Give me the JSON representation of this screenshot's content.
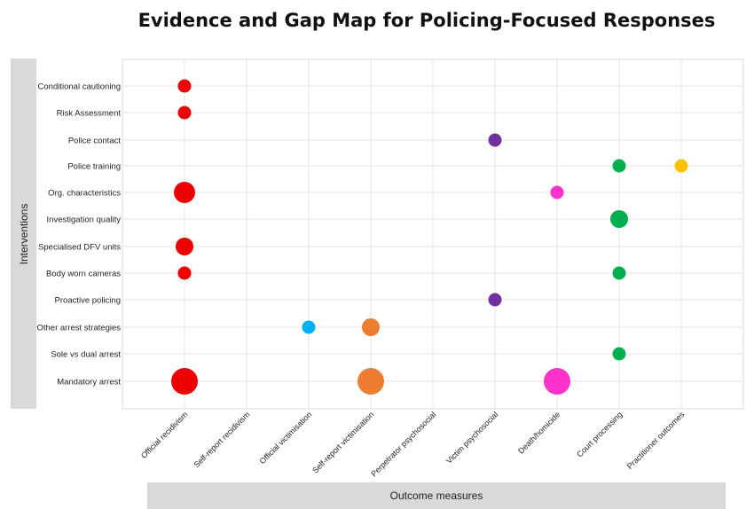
{
  "chart_data": {
    "type": "scatter",
    "title": "Evidence and Gap Map for Policing-Focused Responses",
    "ylabel": "Interventions",
    "xlabel": "Outcome measures",
    "grid": true,
    "rows": [
      "Conditional cautioning",
      "Risk Assessment",
      "Police contact",
      "Police training",
      "Org. characteristics",
      "Investigation quality",
      "Specialised DFV units",
      "Body worn cameras",
      "Proactive policing",
      "Other arrest strategies",
      "Sole vs dual arrest",
      "Mandatory arrest"
    ],
    "columns": [
      "Official recidivism",
      "Self-report recidivism",
      "Official victimisation",
      "Self-report victimisation",
      "Perpetrator psychosocial",
      "Victim psychosocial",
      "Death/homicide",
      "Court processing",
      "Practitioner outcomes"
    ],
    "points": [
      {
        "row": "Conditional cautioning",
        "column": "Official recidivism",
        "size": 1,
        "color": "#ee0000"
      },
      {
        "row": "Risk Assessment",
        "column": "Official recidivism",
        "size": 1,
        "color": "#ee0000"
      },
      {
        "row": "Police contact",
        "column": "Victim psychosocial",
        "size": 1,
        "color": "#7030a0"
      },
      {
        "row": "Police training",
        "column": "Court processing",
        "size": 1,
        "color": "#00b050"
      },
      {
        "row": "Police training",
        "column": "Practitioner outcomes",
        "size": 1,
        "color": "#ffc000"
      },
      {
        "row": "Org. characteristics",
        "column": "Official recidivism",
        "size": 3,
        "color": "#ee0000"
      },
      {
        "row": "Org. characteristics",
        "column": "Death/homicide",
        "size": 1,
        "color": "#ff33cc"
      },
      {
        "row": "Investigation quality",
        "column": "Court processing",
        "size": 2,
        "color": "#00b050"
      },
      {
        "row": "Specialised DFV units",
        "column": "Official recidivism",
        "size": 2,
        "color": "#ee0000"
      },
      {
        "row": "Body worn cameras",
        "column": "Official recidivism",
        "size": 1,
        "color": "#ee0000"
      },
      {
        "row": "Body worn cameras",
        "column": "Court processing",
        "size": 1,
        "color": "#00b050"
      },
      {
        "row": "Proactive policing",
        "column": "Victim psychosocial",
        "size": 1,
        "color": "#7030a0"
      },
      {
        "row": "Other arrest strategies",
        "column": "Official victimisation",
        "size": 1,
        "color": "#00b0f0"
      },
      {
        "row": "Other arrest strategies",
        "column": "Self-report victimisation",
        "size": 2,
        "color": "#ed7d31"
      },
      {
        "row": "Sole vs dual arrest",
        "column": "Court processing",
        "size": 1,
        "color": "#00b050"
      },
      {
        "row": "Mandatory arrest",
        "column": "Official recidivism",
        "size": 4,
        "color": "#ee0000"
      },
      {
        "row": "Mandatory arrest",
        "column": "Self-report victimisation",
        "size": 4,
        "color": "#ed7d31"
      },
      {
        "row": "Mandatory arrest",
        "column": "Death/homicide",
        "size": 4,
        "color": "#ff33cc"
      }
    ]
  }
}
